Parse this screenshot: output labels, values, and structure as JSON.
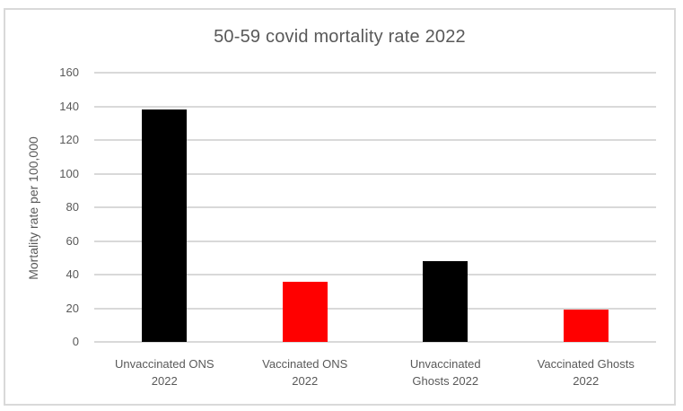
{
  "chart_data": {
    "type": "bar",
    "title": "50-59 covid mortality rate 2022",
    "categories": [
      "Unvaccinated ONS 2022",
      "Vaccinated ONS 2022",
      "Unvaccinated Ghosts 2022",
      "Vaccinated Ghosts 2022"
    ],
    "values": [
      138,
      36,
      48,
      19
    ],
    "bar_colors": [
      "#000000",
      "#FF0000",
      "#000000",
      "#FF0000"
    ],
    "xlabel": "",
    "ylabel": "Mortality rate per 100,000",
    "ylim": [
      0,
      160
    ],
    "yticks": [
      0,
      20,
      40,
      60,
      80,
      100,
      120,
      140,
      160
    ],
    "grid": true,
    "legend": "none"
  },
  "colors": {
    "bar_black": "#000000",
    "bar_red": "#FF0000",
    "text": "#595959",
    "gridline": "#D9D9D9",
    "frame_border": "#D9D9D9",
    "background": "#FFFFFF"
  }
}
